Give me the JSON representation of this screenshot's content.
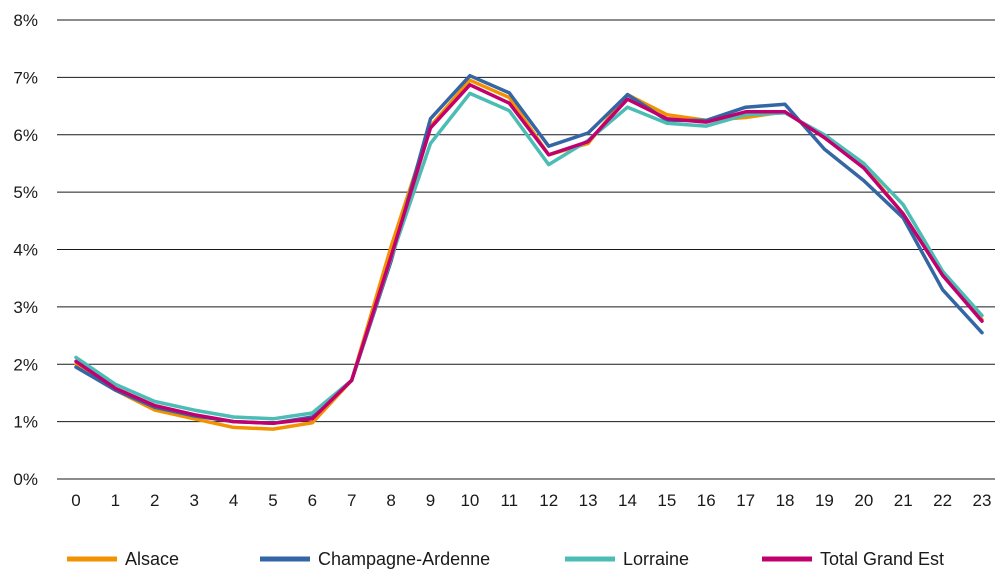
{
  "chart_data": {
    "type": "line",
    "title": "",
    "xlabel": "",
    "ylabel": "",
    "x": [
      0,
      1,
      2,
      3,
      4,
      5,
      6,
      7,
      8,
      9,
      10,
      11,
      12,
      13,
      14,
      15,
      16,
      17,
      18,
      19,
      20,
      21,
      22,
      23
    ],
    "ylim": [
      0,
      8
    ],
    "yticks": [
      0,
      1,
      2,
      3,
      4,
      5,
      6,
      7,
      8
    ],
    "ytick_labels": [
      "0%",
      "1%",
      "2%",
      "3%",
      "4%",
      "5%",
      "6%",
      "7%",
      "8%"
    ],
    "grid": "horizontal",
    "legend_position": "bottom",
    "series": [
      {
        "name": "Alsace",
        "color": "#F39200",
        "values": [
          2.0,
          1.55,
          1.2,
          1.05,
          0.9,
          0.87,
          0.98,
          1.72,
          4.05,
          6.15,
          6.95,
          6.65,
          5.65,
          5.85,
          6.7,
          6.35,
          6.25,
          6.3,
          6.4,
          5.95,
          5.45,
          4.62,
          3.55,
          2.78
        ]
      },
      {
        "name": "Champagne-Ardenne",
        "color": "#3465A4",
        "values": [
          1.95,
          1.55,
          1.25,
          1.1,
          1.0,
          0.97,
          1.08,
          1.72,
          3.8,
          6.28,
          7.03,
          6.73,
          5.8,
          6.03,
          6.7,
          6.25,
          6.25,
          6.48,
          6.53,
          5.75,
          5.2,
          4.55,
          3.3,
          2.55
        ]
      },
      {
        "name": "Lorraine",
        "color": "#4BBDB4",
        "values": [
          2.12,
          1.65,
          1.35,
          1.2,
          1.08,
          1.05,
          1.15,
          1.72,
          3.85,
          5.85,
          6.72,
          6.42,
          5.48,
          5.9,
          6.48,
          6.2,
          6.15,
          6.35,
          6.38,
          6.0,
          5.5,
          4.78,
          3.62,
          2.85
        ]
      },
      {
        "name": "Total Grand Est",
        "color": "#C0006F",
        "values": [
          2.05,
          1.58,
          1.28,
          1.12,
          1.0,
          0.97,
          1.05,
          1.72,
          3.88,
          6.12,
          6.87,
          6.55,
          5.65,
          5.88,
          6.62,
          6.28,
          6.22,
          6.4,
          6.4,
          5.95,
          5.42,
          4.62,
          3.55,
          2.75
        ]
      }
    ]
  }
}
